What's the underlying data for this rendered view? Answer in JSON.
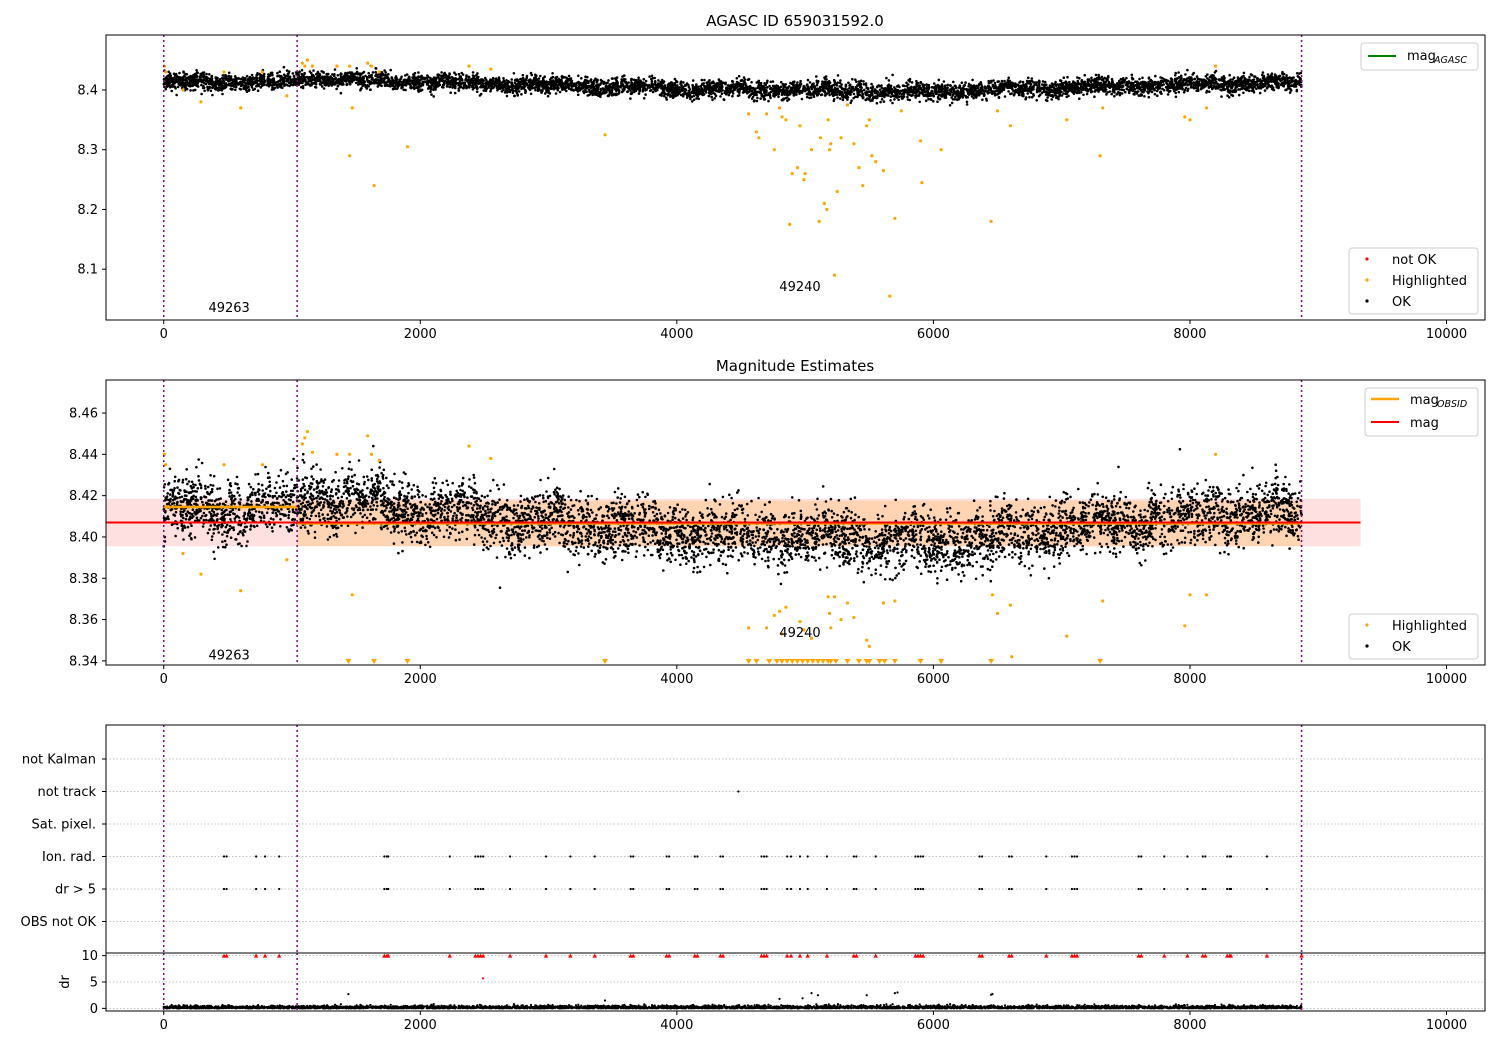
{
  "chart_data": [
    {
      "type": "scatter",
      "title": "AGASC ID 659031592.0",
      "xlim": [
        -450,
        10300
      ],
      "ylim": [
        8.015,
        8.492
      ],
      "xticks": [
        0,
        2000,
        4000,
        6000,
        8000,
        10000
      ],
      "yticks": [
        8.1,
        8.2,
        8.3,
        8.4
      ],
      "grid": false,
      "legend_top": {
        "location": "top-right",
        "entries": [
          {
            "label": "mag",
            "subscript": "AGASC",
            "color": "#008000",
            "marker": "line"
          }
        ]
      },
      "legend_bottom": {
        "location": "bottom-right",
        "entries": [
          {
            "label": "not OK",
            "color": "#ff0000",
            "marker": "dot"
          },
          {
            "label": "Highlighted",
            "color": "#ffa500",
            "marker": "dot"
          },
          {
            "label": "OK",
            "color": "#000000",
            "marker": "dot"
          }
        ]
      },
      "obsid_boundaries": [
        0,
        1040,
        8870
      ],
      "obsid_labels": [
        {
          "text": "49263",
          "x": 510,
          "y": 8.035
        },
        {
          "text": "49240",
          "x": 4960,
          "y": 8.07
        }
      ],
      "series": [
        {
          "name": "OK",
          "color": "#000000",
          "trend": {
            "x": [
              0,
              1000,
              1100,
              2500,
              4000,
              5000,
              6000,
              7000,
              8000,
              8870
            ],
            "y": [
              8.413,
              8.414,
              8.42,
              8.41,
              8.402,
              8.4,
              8.397,
              8.404,
              8.41,
              8.412
            ]
          },
          "spread": 0.007,
          "x_range": [
            0,
            8870
          ]
        },
        {
          "name": "Highlighted",
          "color": "#ffa500",
          "points": [
            [
              5,
              8.44
            ],
            [
              15,
              8.43
            ],
            [
              150,
              8.4
            ],
            [
              290,
              8.38
            ],
            [
              470,
              8.43
            ],
            [
              600,
              8.37
            ],
            [
              770,
              8.43
            ],
            [
              960,
              8.39
            ],
            [
              1080,
              8.445
            ],
            [
              1100,
              8.44
            ],
            [
              1120,
              8.45
            ],
            [
              1160,
              8.44
            ],
            [
              1350,
              8.44
            ],
            [
              1450,
              8.44
            ],
            [
              1450,
              8.29
            ],
            [
              1470,
              8.37
            ],
            [
              1590,
              8.445
            ],
            [
              1620,
              8.44
            ],
            [
              1640,
              8.24
            ],
            [
              1680,
              8.43
            ],
            [
              1900,
              8.305
            ],
            [
              2380,
              8.44
            ],
            [
              2550,
              8.435
            ],
            [
              3440,
              8.325
            ],
            [
              4560,
              8.36
            ],
            [
              4620,
              8.33
            ],
            [
              4640,
              8.32
            ],
            [
              4700,
              8.36
            ],
            [
              4760,
              8.3
            ],
            [
              4800,
              8.37
            ],
            [
              4820,
              8.355
            ],
            [
              4850,
              8.35
            ],
            [
              4880,
              8.175
            ],
            [
              4900,
              8.26
            ],
            [
              4940,
              8.27
            ],
            [
              4960,
              8.34
            ],
            [
              4990,
              8.25
            ],
            [
              5000,
              8.26
            ],
            [
              5050,
              8.3
            ],
            [
              5110,
              8.18
            ],
            [
              5120,
              8.32
            ],
            [
              5150,
              8.21
            ],
            [
              5170,
              8.2
            ],
            [
              5180,
              8.35
            ],
            [
              5190,
              8.3
            ],
            [
              5200,
              8.31
            ],
            [
              5230,
              8.09
            ],
            [
              5250,
              8.23
            ],
            [
              5280,
              8.32
            ],
            [
              5330,
              8.375
            ],
            [
              5380,
              8.31
            ],
            [
              5420,
              8.27
            ],
            [
              5450,
              8.24
            ],
            [
              5480,
              8.34
            ],
            [
              5500,
              8.35
            ],
            [
              5520,
              8.29
            ],
            [
              5550,
              8.28
            ],
            [
              5610,
              8.265
            ],
            [
              5660,
              8.055
            ],
            [
              5700,
              8.185
            ],
            [
              5750,
              8.365
            ],
            [
              5900,
              8.315
            ],
            [
              5910,
              8.245
            ],
            [
              6060,
              8.3
            ],
            [
              6450,
              8.18
            ],
            [
              6500,
              8.365
            ],
            [
              6600,
              8.34
            ],
            [
              7040,
              8.35
            ],
            [
              7300,
              8.29
            ],
            [
              7320,
              8.37
            ],
            [
              7960,
              8.355
            ],
            [
              8000,
              8.35
            ],
            [
              8130,
              8.37
            ],
            [
              8200,
              8.44
            ]
          ]
        },
        {
          "name": "not OK",
          "color": "#ff0000",
          "points": []
        }
      ]
    },
    {
      "type": "scatter",
      "title": "Magnitude Estimates",
      "xlim": [
        -450,
        10300
      ],
      "ylim": [
        8.338,
        8.476
      ],
      "xticks": [
        0,
        2000,
        4000,
        6000,
        8000,
        10000
      ],
      "yticks": [
        8.34,
        8.36,
        8.38,
        8.4,
        8.42,
        8.44,
        8.46
      ],
      "grid": false,
      "legend_top": {
        "location": "top-right",
        "entries": [
          {
            "label": "mag",
            "subscript": "OBSID",
            "color": "#ffa500",
            "marker": "line"
          },
          {
            "label": "mag",
            "subscript": "",
            "color": "#ff0000",
            "marker": "line"
          }
        ]
      },
      "legend_bottom": {
        "location": "bottom-right",
        "entries": [
          {
            "label": "Highlighted",
            "color": "#ffa500",
            "marker": "dot"
          },
          {
            "label": "OK",
            "color": "#000000",
            "marker": "dot"
          }
        ]
      },
      "mag_line": {
        "value": 8.407,
        "band": [
          8.3955,
          8.4185
        ],
        "x_range": [
          -450,
          9330
        ],
        "color": "#ff0000"
      },
      "obsid_mags": [
        {
          "x_range": [
            0,
            1040
          ],
          "value": 8.4145,
          "band": [
            8.4125,
            8.4165
          ]
        },
        {
          "x_range": [
            1040,
            8870
          ],
          "value": 8.4065,
          "band": [
            8.3955,
            8.4175
          ]
        }
      ],
      "obsid_boundaries": [
        0,
        1040,
        8870
      ],
      "obsid_labels": [
        {
          "text": "49263",
          "x": 510,
          "y": 8.3425
        },
        {
          "text": "49240",
          "x": 4960,
          "y": 8.3535
        }
      ],
      "series": [
        {
          "name": "OK",
          "color": "#000000",
          "trend": {
            "x": [
              0,
              1000,
              1100,
              2500,
              4000,
              5000,
              6000,
              7000,
              8000,
              8870
            ],
            "y": [
              8.413,
              8.414,
              8.42,
              8.41,
              8.402,
              8.4,
              8.397,
              8.404,
              8.41,
              8.412
            ]
          },
          "spread": 0.007,
          "x_range": [
            0,
            8870
          ]
        },
        {
          "name": "Highlighted",
          "color": "#ffa500",
          "points": [
            [
              5,
              8.44
            ],
            [
              15,
              8.435
            ],
            [
              150,
              8.392
            ],
            [
              290,
              8.382
            ],
            [
              470,
              8.435
            ],
            [
              600,
              8.374
            ],
            [
              770,
              8.435
            ],
            [
              960,
              8.389
            ],
            [
              1080,
              8.445
            ],
            [
              1100,
              8.448
            ],
            [
              1120,
              8.451
            ],
            [
              1160,
              8.441
            ],
            [
              1350,
              8.44
            ],
            [
              1450,
              8.44
            ],
            [
              1470,
              8.372
            ],
            [
              1590,
              8.449
            ],
            [
              1620,
              8.44
            ],
            [
              1680,
              8.437
            ],
            [
              2380,
              8.444
            ],
            [
              2550,
              8.438
            ],
            [
              4560,
              8.356
            ],
            [
              4700,
              8.356
            ],
            [
              4760,
              8.362
            ],
            [
              4800,
              8.364
            ],
            [
              4820,
              8.353
            ],
            [
              4850,
              8.366
            ],
            [
              4960,
              8.359
            ],
            [
              4990,
              8.355
            ],
            [
              5050,
              8.351
            ],
            [
              5180,
              8.371
            ],
            [
              5190,
              8.363
            ],
            [
              5200,
              8.356
            ],
            [
              5230,
              8.371
            ],
            [
              5280,
              8.36
            ],
            [
              5330,
              8.368
            ],
            [
              5380,
              8.361
            ],
            [
              5480,
              8.35
            ],
            [
              5500,
              8.347
            ],
            [
              5610,
              8.368
            ],
            [
              5700,
              8.369
            ],
            [
              6460,
              8.372
            ],
            [
              6500,
              8.363
            ],
            [
              6600,
              8.367
            ],
            [
              6610,
              8.342
            ],
            [
              7040,
              8.352
            ],
            [
              7320,
              8.369
            ],
            [
              7960,
              8.357
            ],
            [
              8000,
              8.372
            ],
            [
              8130,
              8.372
            ],
            [
              8200,
              8.44
            ]
          ]
        },
        {
          "name": "Highlighted (below axis)",
          "color": "#ffa500",
          "marker": "triangle-down",
          "x": [
            1440,
            1640,
            1900,
            3440,
            4560,
            4620,
            4720,
            4780,
            4820,
            4860,
            4900,
            4940,
            4980,
            5020,
            5060,
            5100,
            5140,
            5180,
            5200,
            5240,
            5330,
            5420,
            5480,
            5500,
            5580,
            5620,
            5700,
            5900,
            6060,
            6450,
            7300
          ]
        }
      ]
    },
    {
      "type": "scatter",
      "title": "",
      "xlim": [
        -450,
        10300
      ],
      "xticks": [
        0,
        2000,
        4000,
        6000,
        8000,
        10000
      ],
      "flag_categories": [
        "not Kalman",
        "not track",
        "Sat. pixel.",
        "Ion. rad.",
        "dr > 5",
        "OBS not OK"
      ],
      "flag_grid": "dotted",
      "obsid_boundaries": [
        0,
        1040,
        8870
      ],
      "flag_points": {
        "not Kalman": [],
        "not track": [
          4480
        ],
        "Sat. pixel.": [],
        "Ion. rad.": [
          470,
          490,
          720,
          790,
          900,
          1720,
          1740,
          1750,
          2230,
          2430,
          2450,
          2470,
          2490,
          2700,
          2980,
          3170,
          3360,
          3640,
          3660,
          3920,
          3940,
          4140,
          4160,
          4340,
          4360,
          4660,
          4680,
          4700,
          4860,
          4890,
          4960,
          5020,
          5170,
          5380,
          5400,
          5550,
          5860,
          5880,
          5900,
          5920,
          6360,
          6380,
          6590,
          6610,
          6880,
          7080,
          7100,
          7120,
          7600,
          7620,
          7800,
          7980,
          8100,
          8120,
          8290,
          8310,
          8320,
          8600
        ],
        "dr > 5": [
          470,
          490,
          720,
          790,
          900,
          1720,
          1740,
          1750,
          2230,
          2430,
          2450,
          2470,
          2490,
          2700,
          2980,
          3170,
          3360,
          3640,
          3660,
          3920,
          3940,
          4140,
          4160,
          4340,
          4360,
          4660,
          4680,
          4700,
          4860,
          4890,
          4960,
          5020,
          5170,
          5380,
          5400,
          5550,
          5860,
          5880,
          5900,
          5920,
          6360,
          6380,
          6590,
          6610,
          6880,
          7080,
          7100,
          7120,
          7600,
          7620,
          7800,
          7980,
          8100,
          8120,
          8290,
          8310,
          8320,
          8600
        ],
        "OBS not OK": []
      },
      "dr_panel": {
        "ylabel": "dr",
        "ylim": [
          -0.5,
          10.5
        ],
        "yticks": [
          0,
          5,
          10
        ],
        "ok_range": [
          0,
          0.8
        ],
        "ok_color": "#000000",
        "clipped_value": 10,
        "clipped_color": "#ff0000",
        "clipped_x": [
          470,
          490,
          720,
          790,
          900,
          1720,
          1740,
          1750,
          2230,
          2430,
          2450,
          2470,
          2490,
          2700,
          2980,
          3170,
          3360,
          3640,
          3660,
          3920,
          3940,
          4140,
          4160,
          4340,
          4360,
          4660,
          4680,
          4700,
          4860,
          4890,
          4960,
          5020,
          5170,
          5380,
          5400,
          5550,
          5860,
          5880,
          5900,
          5920,
          6360,
          6380,
          6590,
          6610,
          6880,
          7080,
          7100,
          7120,
          7600,
          7620,
          7800,
          7980,
          8100,
          8120,
          8290,
          8310,
          8320,
          8600,
          8870
        ],
        "outliers": [
          [
            1440,
            2.7
          ],
          [
            2490,
            5.7
          ],
          [
            3440,
            1.5
          ],
          [
            4800,
            1.8
          ],
          [
            4980,
            1.9
          ],
          [
            5050,
            2.9
          ],
          [
            5100,
            2.5
          ],
          [
            5480,
            2.5
          ],
          [
            5700,
            2.9
          ],
          [
            5720,
            3.0
          ],
          [
            6450,
            2.6
          ],
          [
            6460,
            2.7
          ]
        ]
      }
    }
  ]
}
